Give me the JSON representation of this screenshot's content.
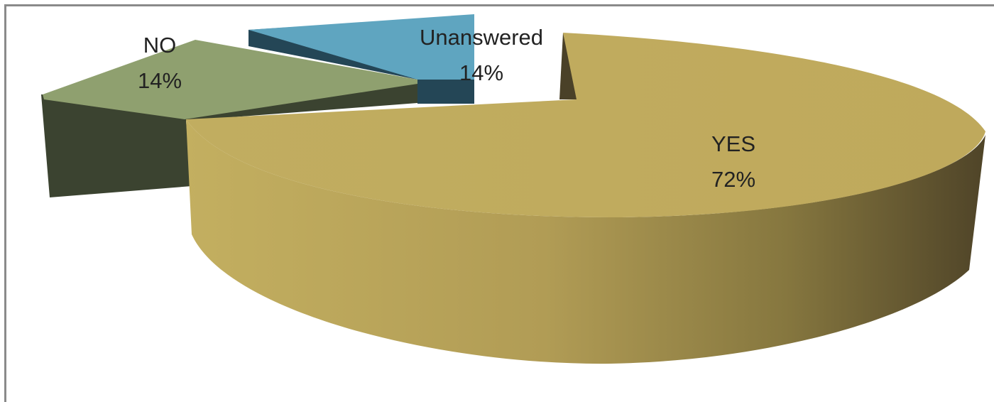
{
  "chart_data": {
    "type": "pie",
    "title": "",
    "categories": [
      "YES",
      "NO",
      "Unanswered"
    ],
    "values": [
      72,
      14,
      14
    ],
    "data_labels": [
      "72%",
      "14%",
      "14%"
    ],
    "legend": "none",
    "colors": {
      "YES": "#c0ad5f",
      "NO": "#8fa06f",
      "Unanswered": "#5fa5c0"
    }
  }
}
